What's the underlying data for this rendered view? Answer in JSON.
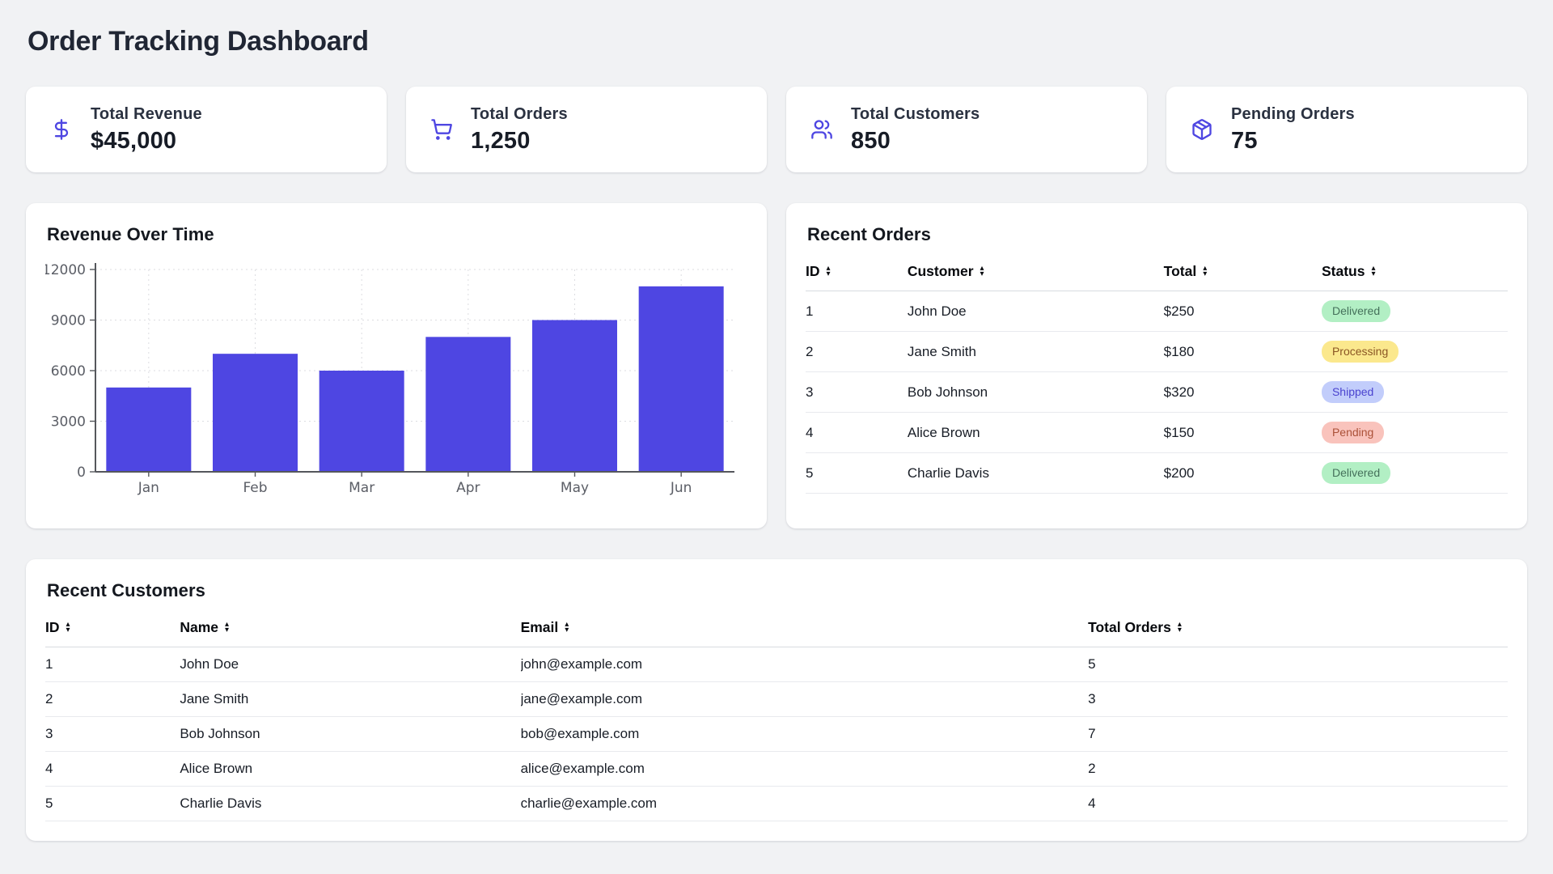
{
  "page": {
    "title": "Order Tracking Dashboard"
  },
  "colors": {
    "accent": "#4e46e2",
    "page_bg": "#f1f2f4",
    "card_bg": "#ffffff",
    "status": {
      "Delivered": {
        "bg": "#b2efc4",
        "fg": "#45715b"
      },
      "Processing": {
        "bg": "#fbe88d",
        "fg": "#8a5524"
      },
      "Shipped": {
        "bg": "#c2cdfb",
        "fg": "#4a43cf"
      },
      "Pending": {
        "bg": "#f9c3bc",
        "fg": "#ab5138"
      }
    }
  },
  "stats": [
    {
      "icon": "dollar-sign-icon",
      "label": "Total Revenue",
      "value": "$45,000"
    },
    {
      "icon": "shopping-cart-icon",
      "label": "Total Orders",
      "value": "1,250"
    },
    {
      "icon": "users-icon",
      "label": "Total Customers",
      "value": "850"
    },
    {
      "icon": "package-icon",
      "label": "Pending Orders",
      "value": "75"
    }
  ],
  "chart_data": {
    "type": "bar",
    "title": "Revenue Over Time",
    "categories": [
      "Jan",
      "Feb",
      "Mar",
      "Apr",
      "May",
      "Jun"
    ],
    "values": [
      5000,
      7000,
      6000,
      8000,
      9000,
      11000
    ],
    "xlabel": "",
    "ylabel": "",
    "ylim": [
      0,
      12000
    ],
    "yticks": [
      0,
      3000,
      6000,
      9000,
      12000
    ],
    "bar_color": "#4e46e2",
    "grid": true,
    "grid_color": "#dcdde1",
    "axis_color": "#55575c",
    "tick_label_color": "#5b5e66",
    "legend": false
  },
  "orders": {
    "title": "Recent Orders",
    "columns": [
      {
        "label": "ID",
        "key": "id"
      },
      {
        "label": "Customer",
        "key": "customer"
      },
      {
        "label": "Total",
        "key": "total"
      },
      {
        "label": "Status",
        "key": "status",
        "badge": true
      }
    ],
    "rows": [
      {
        "id": "1",
        "customer": "John Doe",
        "total": "$250",
        "status": "Delivered"
      },
      {
        "id": "2",
        "customer": "Jane Smith",
        "total": "$180",
        "status": "Processing"
      },
      {
        "id": "3",
        "customer": "Bob Johnson",
        "total": "$320",
        "status": "Shipped"
      },
      {
        "id": "4",
        "customer": "Alice Brown",
        "total": "$150",
        "status": "Pending"
      },
      {
        "id": "5",
        "customer": "Charlie Davis",
        "total": "$200",
        "status": "Delivered"
      }
    ]
  },
  "customers": {
    "title": "Recent Customers",
    "columns": [
      {
        "label": "ID",
        "key": "id"
      },
      {
        "label": "Name",
        "key": "name"
      },
      {
        "label": "Email",
        "key": "email"
      },
      {
        "label": "Total Orders",
        "key": "total_orders"
      }
    ],
    "rows": [
      {
        "id": "1",
        "name": "John Doe",
        "email": "john@example.com",
        "total_orders": "5"
      },
      {
        "id": "2",
        "name": "Jane Smith",
        "email": "jane@example.com",
        "total_orders": "3"
      },
      {
        "id": "3",
        "name": "Bob Johnson",
        "email": "bob@example.com",
        "total_orders": "7"
      },
      {
        "id": "4",
        "name": "Alice Brown",
        "email": "alice@example.com",
        "total_orders": "2"
      },
      {
        "id": "5",
        "name": "Charlie Davis",
        "email": "charlie@example.com",
        "total_orders": "4"
      }
    ]
  }
}
